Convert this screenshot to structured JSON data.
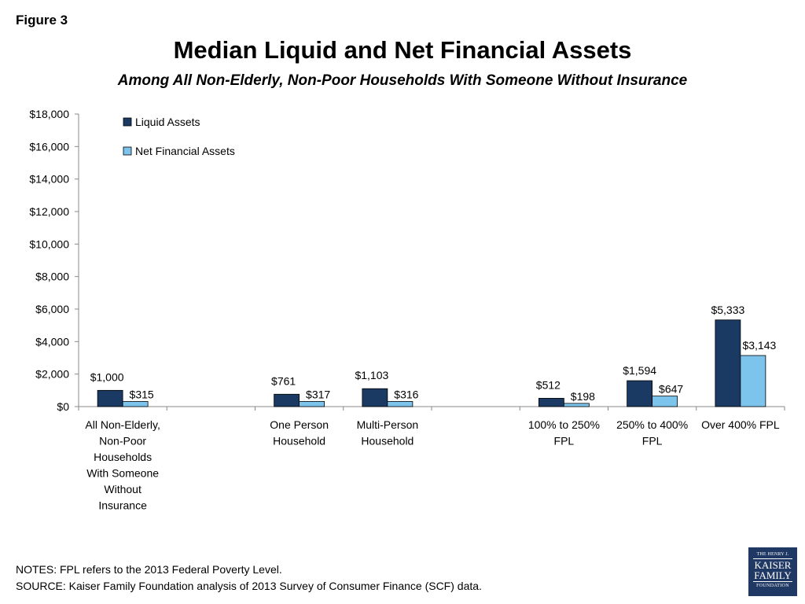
{
  "figure_label": "Figure 3",
  "chart_data": {
    "type": "bar",
    "title": "Median Liquid and Net Financial Assets",
    "subtitle": "Among All Non-Elderly, Non-Poor Households With Someone Without Insurance",
    "xlabel": "",
    "ylabel": "",
    "ylim": [
      0,
      18000
    ],
    "y_ticks": [
      "$0",
      "$2,000",
      "$4,000",
      "$6,000",
      "$8,000",
      "$10,000",
      "$12,000",
      "$14,000",
      "$16,000",
      "$18,000"
    ],
    "grid": false,
    "legend_position": "top-left",
    "categories": [
      [
        "All Non-Elderly,",
        "Non-Poor",
        "Households",
        "With Someone",
        "Without",
        "Insurance"
      ],
      [],
      [
        "One Person",
        "Household"
      ],
      [
        "Multi-Person",
        "Household"
      ],
      [],
      [
        "100% to 250%",
        "FPL"
      ],
      [
        "250% to 400%",
        "FPL"
      ],
      [
        "Over 400% FPL"
      ]
    ],
    "series": [
      {
        "name": "Liquid Assets",
        "color": "#1a3a63",
        "values": [
          1000,
          null,
          761,
          1103,
          null,
          512,
          1594,
          5333
        ],
        "labels": [
          "$1,000",
          "",
          "$761",
          "$1,103",
          "",
          "$512",
          "$1,594",
          "$5,333"
        ]
      },
      {
        "name": "Net Financial Assets",
        "color": "#7cc4ec",
        "values": [
          315,
          null,
          317,
          316,
          null,
          198,
          647,
          3143
        ],
        "labels": [
          "$315",
          "",
          "$317",
          "$316",
          "",
          "$198",
          "$647",
          "$3,143"
        ]
      }
    ]
  },
  "notes": [
    "NOTES: FPL refers to the 2013 Federal Poverty Level.",
    "SOURCE: Kaiser Family Foundation analysis of 2013 Survey of Consumer Finance (SCF) data."
  ],
  "logo": {
    "line1": "THE HENRY J.",
    "line2": "KAISER",
    "line3": "FAMILY",
    "line4": "FOUNDATION"
  }
}
